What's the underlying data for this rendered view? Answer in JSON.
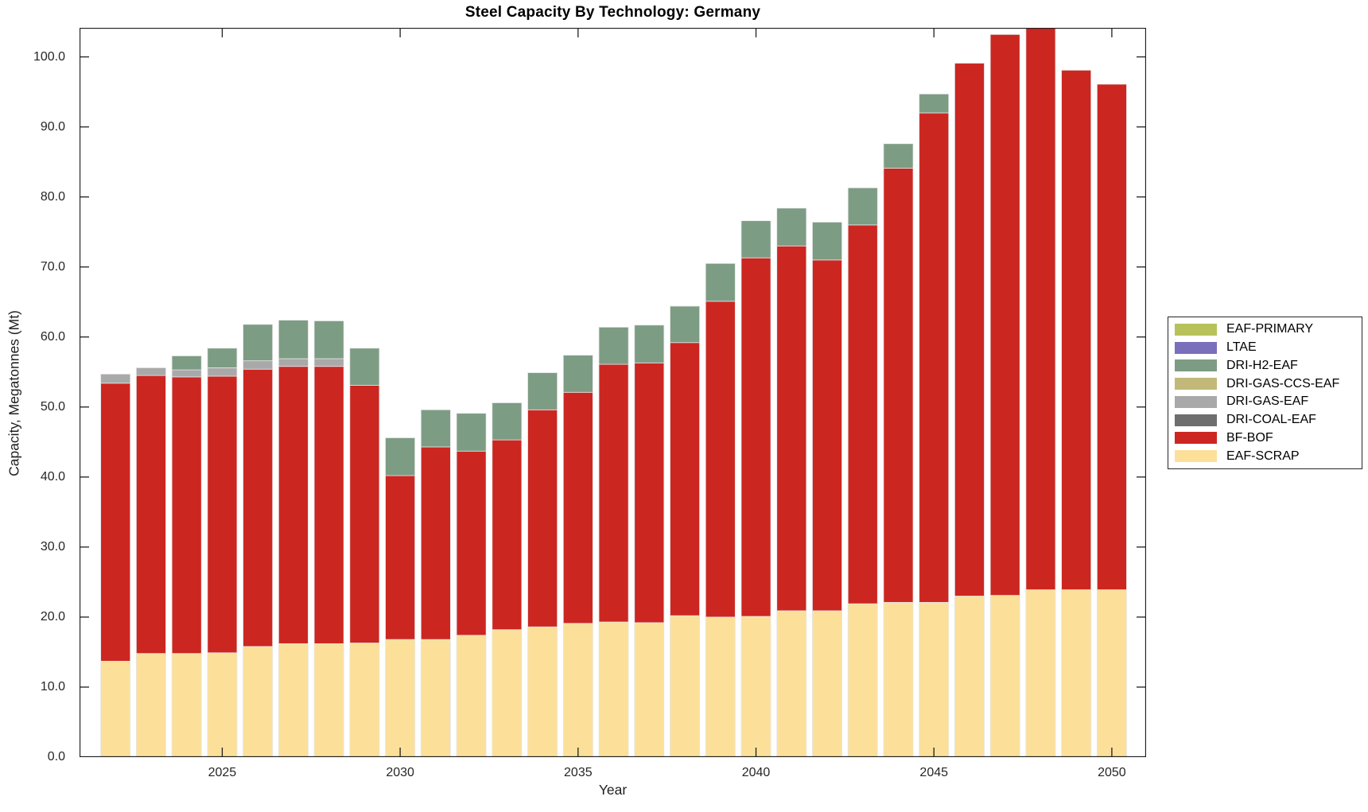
{
  "title": "Steel Capacity By Technology: Germany",
  "x_axis_label": "Year",
  "y_axis_label": "Capacity, Megatonnes (Mt)",
  "colors": {
    "axis": "#1f1f1f",
    "tick_label": "#262626",
    "bar_edge": "#e6e6e6",
    "background": "#ffffff"
  },
  "legend": [
    {
      "label": "EAF-PRIMARY",
      "color": "#b7c25b"
    },
    {
      "label": "LTAE",
      "color": "#7a6fba"
    },
    {
      "label": "DRI-H2-EAF",
      "color": "#7d9c84"
    },
    {
      "label": "DRI-GAS-CCS-EAF",
      "color": "#c2b979"
    },
    {
      "label": "DRI-GAS-EAF",
      "color": "#a9a9a9"
    },
    {
      "label": "DRI-COAL-EAF",
      "color": "#6e6e6e"
    },
    {
      "label": "BF-BOF",
      "color": "#cc2621"
    },
    {
      "label": "EAF-SCRAP",
      "color": "#fce099"
    }
  ],
  "chart_data": {
    "type": "bar",
    "stacked": true,
    "title": "Steel Capacity By Technology: Germany",
    "xlabel": "Year",
    "ylabel": "Capacity, Megatonnes (Mt)",
    "x": [
      2022,
      2023,
      2024,
      2025,
      2026,
      2027,
      2028,
      2029,
      2030,
      2031,
      2032,
      2033,
      2034,
      2035,
      2036,
      2037,
      2038,
      2039,
      2040,
      2041,
      2042,
      2043,
      2044,
      2045,
      2046,
      2047,
      2048,
      2049,
      2050
    ],
    "series": [
      {
        "name": "EAF-SCRAP",
        "color": "#fce099",
        "values": [
          13.7,
          14.8,
          14.8,
          14.9,
          15.8,
          16.2,
          16.2,
          16.3,
          16.8,
          16.8,
          17.4,
          18.2,
          18.6,
          19.1,
          19.3,
          19.2,
          20.2,
          20.0,
          20.1,
          20.9,
          20.9,
          21.9,
          22.1,
          22.1,
          23.0,
          23.1,
          23.9,
          23.9,
          23.9
        ]
      },
      {
        "name": "BF-BOF",
        "color": "#cc2621",
        "values": [
          39.7,
          39.7,
          39.5,
          39.5,
          39.6,
          39.6,
          39.6,
          36.8,
          23.4,
          27.5,
          26.3,
          27.1,
          31.0,
          33.0,
          36.8,
          37.1,
          39.0,
          45.1,
          51.2,
          52.1,
          50.1,
          54.1,
          62.0,
          69.9,
          76.1,
          80.1,
          80.6,
          74.2,
          72.2
        ]
      },
      {
        "name": "DRI-COAL-EAF",
        "color": "#6e6e6e",
        "values": [
          0,
          0,
          0,
          0,
          0,
          0,
          0,
          0,
          0,
          0,
          0,
          0,
          0,
          0,
          0,
          0,
          0,
          0,
          0,
          0,
          0,
          0,
          0,
          0,
          0,
          0,
          0,
          0,
          0
        ]
      },
      {
        "name": "DRI-GAS-EAF",
        "color": "#a9a9a9",
        "values": [
          1.3,
          1.1,
          1.0,
          1.2,
          1.2,
          1.1,
          1.1,
          0,
          0,
          0,
          0,
          0,
          0,
          0,
          0,
          0,
          0,
          0,
          0,
          0,
          0,
          0,
          0,
          0,
          0,
          0,
          0,
          0,
          0
        ]
      },
      {
        "name": "DRI-GAS-CCS-EAF",
        "color": "#c2b979",
        "values": [
          0,
          0,
          0,
          0,
          0,
          0,
          0,
          0,
          0,
          0,
          0,
          0,
          0,
          0,
          0,
          0,
          0,
          0,
          0,
          0,
          0,
          0,
          0,
          0,
          0,
          0,
          0,
          0,
          0
        ]
      },
      {
        "name": "DRI-H2-EAF",
        "color": "#7d9c84",
        "values": [
          0,
          0,
          2.0,
          2.8,
          5.2,
          5.5,
          5.4,
          5.3,
          5.4,
          5.3,
          5.4,
          5.3,
          5.3,
          5.3,
          5.3,
          5.4,
          5.2,
          5.4,
          5.3,
          5.4,
          5.4,
          5.3,
          3.5,
          2.7,
          0,
          0,
          0,
          0,
          0
        ]
      },
      {
        "name": "LTAE",
        "color": "#7a6fba",
        "values": [
          0,
          0,
          0,
          0,
          0,
          0,
          0,
          0,
          0,
          0,
          0,
          0,
          0,
          0,
          0,
          0,
          0,
          0,
          0,
          0,
          0,
          0,
          0,
          0,
          0,
          0,
          0,
          0,
          0
        ]
      },
      {
        "name": "EAF-PRIMARY",
        "color": "#b7c25b",
        "values": [
          0,
          0,
          0,
          0,
          0,
          0,
          0,
          0,
          0,
          0,
          0,
          0,
          0,
          0,
          0,
          0,
          0,
          0,
          0,
          0,
          0,
          0,
          0,
          0,
          0,
          0,
          0,
          0,
          0
        ]
      }
    ],
    "totals": [
      54.7,
      55.6,
      57.3,
      58.4,
      61.8,
      62.4,
      62.3,
      58.4,
      45.6,
      49.6,
      49.1,
      50.6,
      54.9,
      57.4,
      61.4,
      61.7,
      64.4,
      70.5,
      76.6,
      78.4,
      76.4,
      81.3,
      87.6,
      94.7,
      99.1,
      103.2,
      104.5,
      98.1,
      96.1
    ],
    "ylim": [
      0,
      104.15
    ],
    "x_ticks": [
      2025,
      2030,
      2035,
      2040,
      2045,
      2050
    ],
    "y_ticks": [
      0,
      10,
      20,
      30,
      40,
      50,
      60,
      70,
      80,
      90,
      100
    ],
    "y_tick_format": "one-decimal",
    "grid": false,
    "legend_position": "right-outside"
  }
}
